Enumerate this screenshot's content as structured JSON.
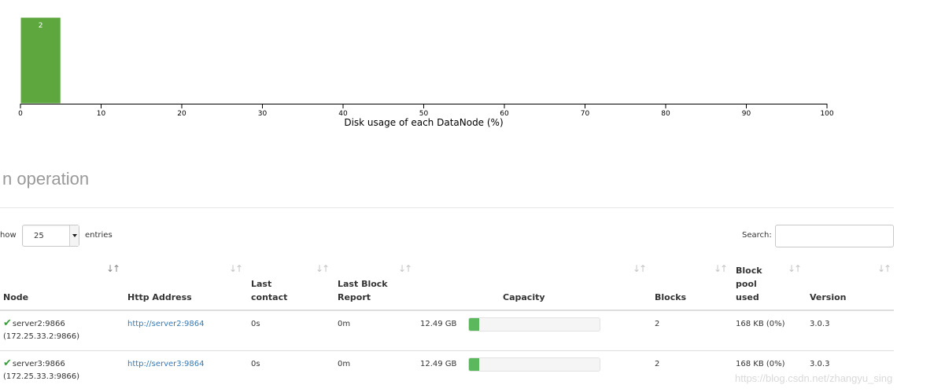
{
  "histogram": {
    "type": "bar",
    "bins": [
      {
        "from": 0,
        "to": 5,
        "count": 2,
        "label": "2"
      }
    ],
    "x_ticks": [
      "0",
      "10",
      "20",
      "30",
      "40",
      "50",
      "60",
      "70",
      "80",
      "90",
      "100"
    ],
    "xlim": [
      0,
      100
    ],
    "xlabel": "Disk usage of each DataNode (%)",
    "bar_color": "#5ea73f"
  },
  "section": {
    "title": "n operation"
  },
  "controls": {
    "show_label": "how",
    "entries_value": "25",
    "entries_label": "entries",
    "search_label": "Search:"
  },
  "table": {
    "headers": {
      "node": "Node",
      "http": "Http Address",
      "last_contact_1": "Last",
      "last_contact_2": "contact",
      "last_block_1": "Last Block",
      "last_block_2": "Report",
      "capacity": "Capacity",
      "blocks": "Blocks",
      "bpu_1": "Block",
      "bpu_2": "pool",
      "bpu_3": "used",
      "version": "Version"
    },
    "rows": [
      {
        "node": "server2:9866",
        "node_ip": "(172.25.33.2:9866)",
        "http": "http://server2:9864",
        "last_contact": "0s",
        "last_block_report": "0m",
        "capacity": "12.49 GB",
        "capacity_used_fraction": 0.08,
        "blocks": "2",
        "block_pool_used": "168 KB (0%)",
        "version": "3.0.3"
      },
      {
        "node": "server3:9866",
        "node_ip": "(172.25.33.3:9866)",
        "http": "http://server3:9864",
        "last_contact": "0s",
        "last_block_report": "0m",
        "capacity": "12.49 GB",
        "capacity_used_fraction": 0.08,
        "blocks": "2",
        "block_pool_used": "168 KB (0%)",
        "version": "3.0.3"
      }
    ]
  },
  "watermark": "https://blog.csdn.net/zhangyu_sing",
  "colors": {
    "accent": "#5cb85c",
    "link": "#337ab7"
  }
}
